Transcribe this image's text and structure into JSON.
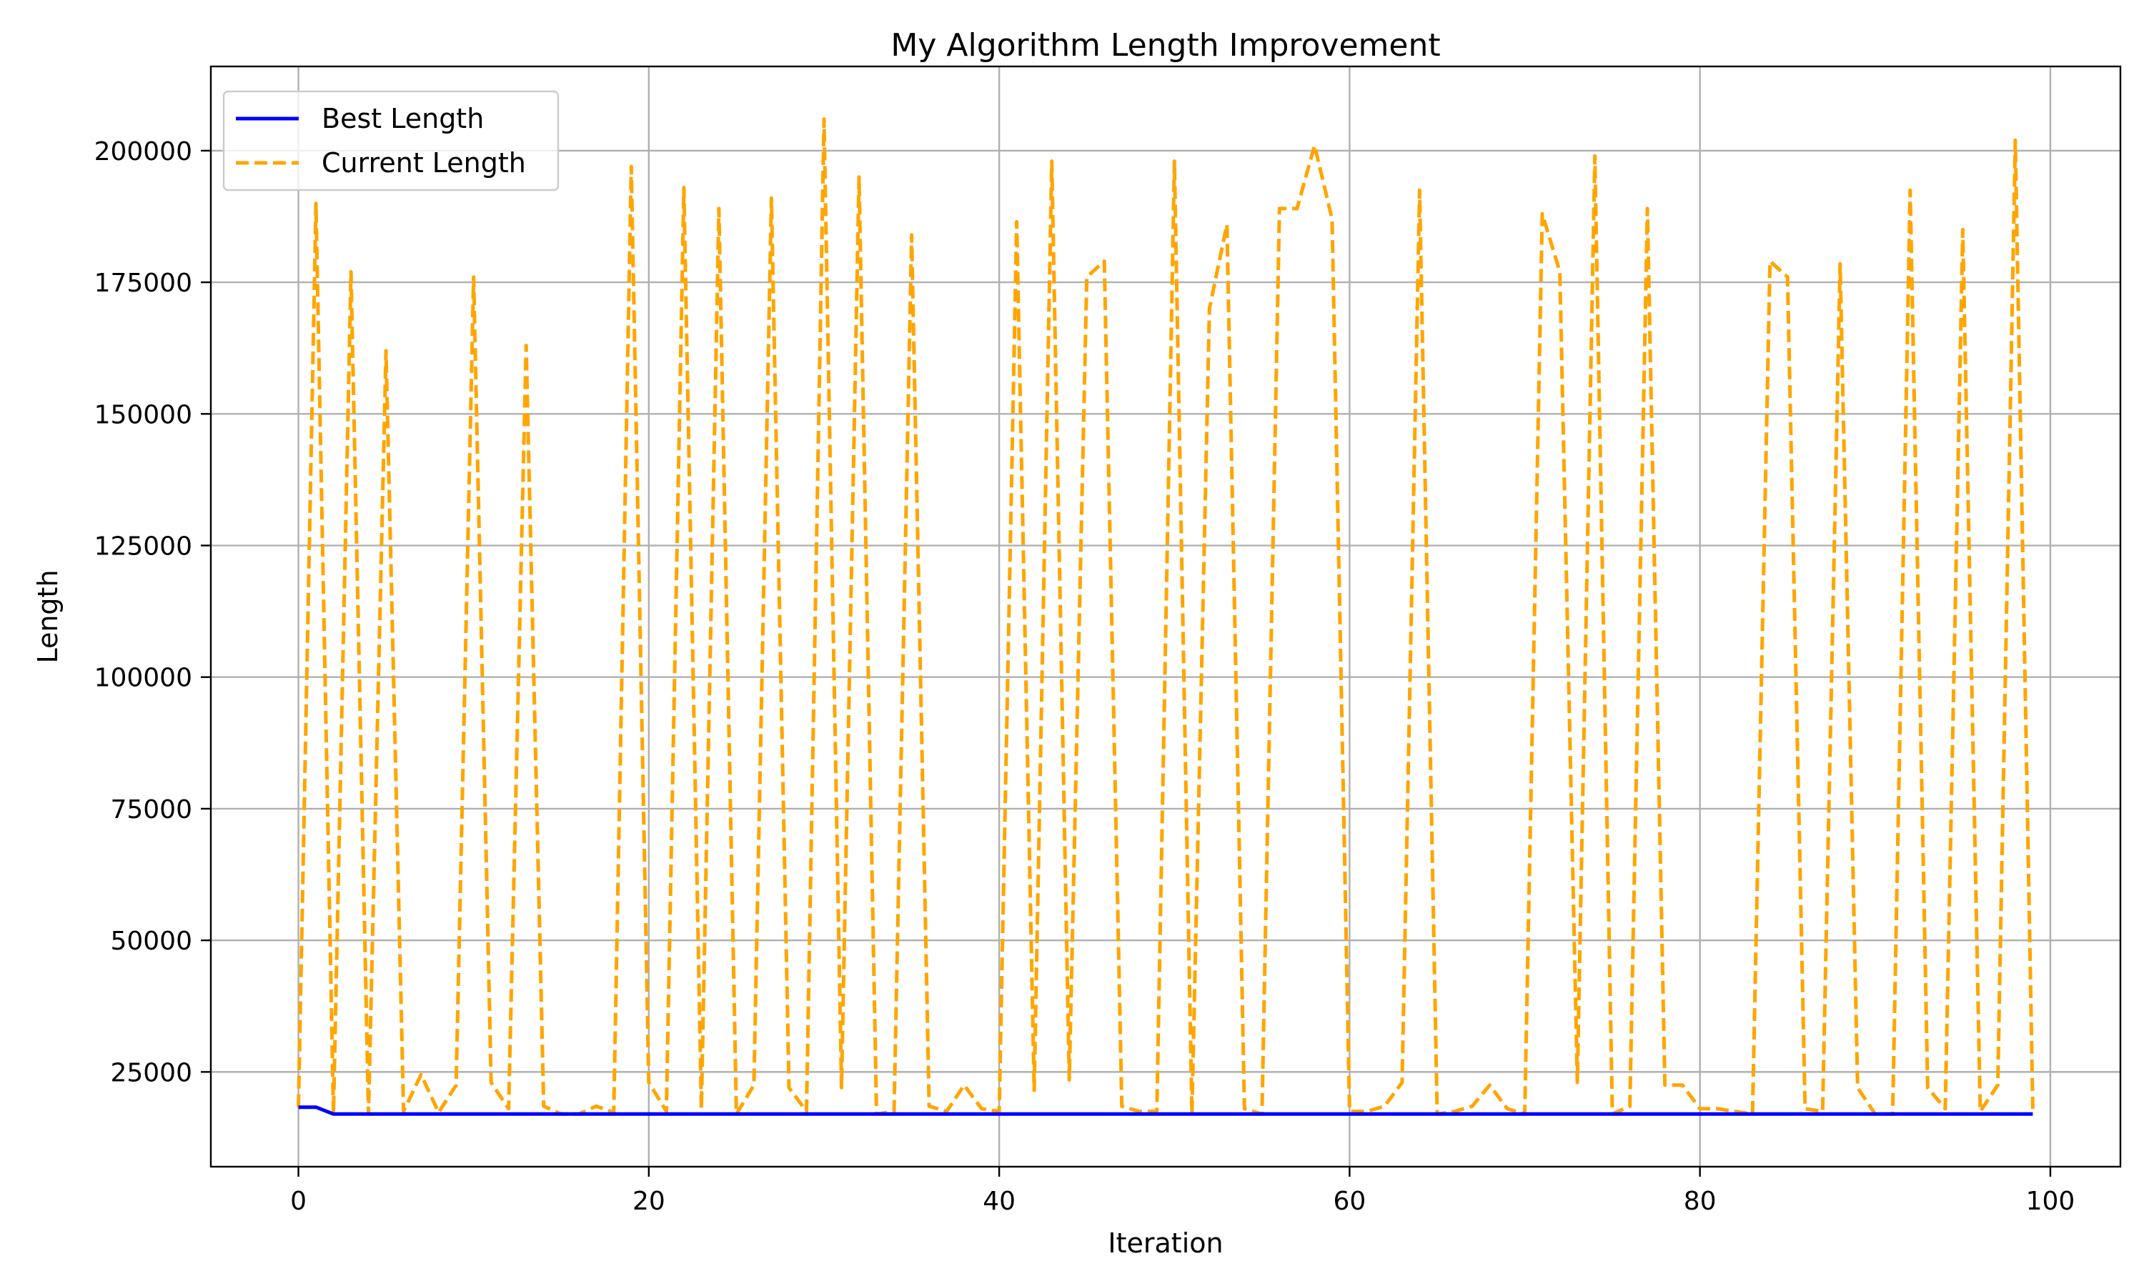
{
  "chart_data": {
    "type": "line",
    "title": "My Algorithm Length Improvement",
    "xlabel": "Iteration",
    "ylabel": "Length",
    "xlim": [
      -5,
      104
    ],
    "ylim": [
      7000,
      216000
    ],
    "xticks": [
      0,
      20,
      40,
      60,
      80,
      100
    ],
    "yticks": [
      25000,
      50000,
      75000,
      100000,
      125000,
      150000,
      175000,
      200000
    ],
    "grid": true,
    "legend": "top-left",
    "series": [
      {
        "name": "Best Length",
        "color": "#0000ff",
        "style": "solid",
        "x": [
          0,
          1,
          2,
          3,
          4,
          5,
          6,
          7,
          8,
          9,
          10,
          11,
          12,
          13,
          14,
          15,
          16,
          17,
          18,
          19,
          20,
          21,
          22,
          23,
          24,
          25,
          26,
          27,
          28,
          29,
          30,
          31,
          32,
          33,
          34,
          35,
          36,
          37,
          38,
          39,
          40,
          41,
          42,
          43,
          44,
          45,
          46,
          47,
          48,
          49,
          50,
          51,
          52,
          53,
          54,
          55,
          56,
          57,
          58,
          59,
          60,
          61,
          62,
          63,
          64,
          65,
          66,
          67,
          68,
          69,
          70,
          71,
          72,
          73,
          74,
          75,
          76,
          77,
          78,
          79,
          80,
          81,
          82,
          83,
          84,
          85,
          86,
          87,
          88,
          89,
          90,
          91,
          92,
          93,
          94,
          95,
          96,
          97,
          98,
          99
        ],
        "values": [
          18300,
          18300,
          17000,
          17000,
          17000,
          17000,
          17000,
          17000,
          17000,
          17000,
          17000,
          17000,
          17000,
          17000,
          17000,
          17000,
          17000,
          17000,
          17000,
          17000,
          17000,
          17000,
          17000,
          17000,
          17000,
          17000,
          17000,
          17000,
          17000,
          17000,
          17000,
          17000,
          17000,
          17000,
          17000,
          17000,
          17000,
          17000,
          17000,
          17000,
          17000,
          17000,
          17000,
          17000,
          17000,
          17000,
          17000,
          17000,
          17000,
          17000,
          17000,
          17000,
          17000,
          17000,
          17000,
          17000,
          17000,
          17000,
          17000,
          17000,
          17000,
          17000,
          17000,
          17000,
          17000,
          17000,
          17000,
          17000,
          17000,
          17000,
          17000,
          17000,
          17000,
          17000,
          17000,
          17000,
          17000,
          17000,
          17000,
          17000,
          17000,
          17000,
          17000,
          17000,
          17000,
          17000,
          17000,
          17000,
          17000,
          17000,
          17000,
          17000,
          17000,
          17000,
          17000,
          17000,
          17000,
          17000,
          17000,
          17000
        ]
      },
      {
        "name": "Current Length",
        "color": "#ffa500",
        "style": "dashed",
        "x": [
          0,
          1,
          2,
          3,
          4,
          5,
          6,
          7,
          8,
          9,
          10,
          11,
          12,
          13,
          14,
          15,
          16,
          17,
          18,
          19,
          20,
          21,
          22,
          23,
          24,
          25,
          26,
          27,
          28,
          29,
          30,
          31,
          32,
          33,
          34,
          35,
          36,
          37,
          38,
          39,
          40,
          41,
          42,
          43,
          44,
          45,
          46,
          47,
          48,
          49,
          50,
          51,
          52,
          53,
          54,
          55,
          56,
          57,
          58,
          59,
          60,
          61,
          62,
          63,
          64,
          65,
          66,
          67,
          68,
          69,
          70,
          71,
          72,
          73,
          74,
          75,
          76,
          77,
          78,
          79,
          80,
          81,
          82,
          83,
          84,
          85,
          86,
          87,
          88,
          89,
          90,
          91,
          92,
          93,
          94,
          95,
          96,
          97,
          98,
          99
        ],
        "values": [
          18300,
          190000,
          17000,
          177000,
          17000,
          162000,
          17500,
          24500,
          17300,
          22500,
          176000,
          23000,
          18000,
          163000,
          18500,
          17000,
          17000,
          18500,
          17300,
          197000,
          23000,
          17500,
          193000,
          18000,
          189000,
          17000,
          22500,
          191000,
          22000,
          17500,
          206000,
          22000,
          195000,
          17000,
          17500,
          184000,
          18500,
          17500,
          22500,
          18000,
          17500,
          186500,
          21500,
          198000,
          23500,
          176000,
          179000,
          18500,
          17500,
          17500,
          198000,
          17000,
          170000,
          186000,
          18000,
          17000,
          189000,
          189000,
          201000,
          187000,
          17500,
          17500,
          18500,
          23000,
          192500,
          17000,
          17500,
          18500,
          22500,
          18000,
          17000,
          188000,
          177000,
          23000,
          199000,
          17000,
          18500,
          189000,
          22500,
          22500,
          18000,
          18000,
          17500,
          17000,
          179000,
          176000,
          18000,
          17500,
          178500,
          22000,
          17000,
          17000,
          192500,
          22000,
          18000,
          185000,
          17500,
          22500,
          202000,
          18000
        ]
      }
    ]
  }
}
